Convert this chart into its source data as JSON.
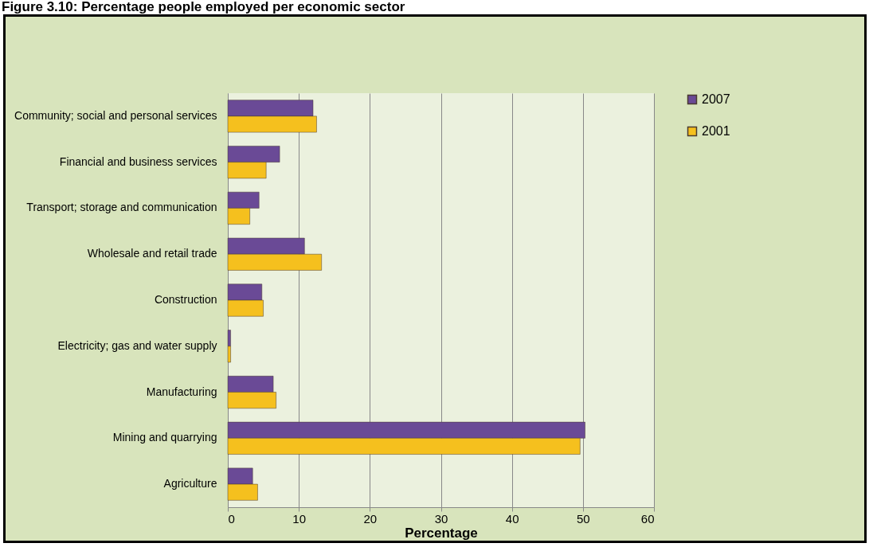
{
  "chart_data": {
    "type": "bar",
    "orientation": "horizontal",
    "title": "Figure 3.10: Percentage people employed per economic sector",
    "xlabel": "Percentage",
    "categories": [
      "Community; social and personal services",
      "Financial and business services",
      "Transport; storage and communication",
      "Wholesale and retail trade",
      "Construction",
      "Electricity; gas and water supply",
      "Manufacturing",
      "Mining and quarrying",
      "Agriculture"
    ],
    "series": [
      {
        "name": "2007",
        "color": "#6a4a96",
        "values": [
          12.0,
          7.3,
          4.4,
          10.8,
          4.8,
          0.4,
          6.4,
          50.3,
          3.5
        ]
      },
      {
        "name": "2001",
        "color": "#f5c01e",
        "values": [
          12.5,
          5.4,
          3.1,
          13.2,
          5.0,
          0.4,
          6.8,
          49.6,
          4.2
        ]
      }
    ],
    "xlim": [
      0,
      60
    ],
    "xticks": [
      0,
      10,
      20,
      30,
      40,
      50,
      60
    ],
    "grid": "x",
    "legend": "right"
  }
}
